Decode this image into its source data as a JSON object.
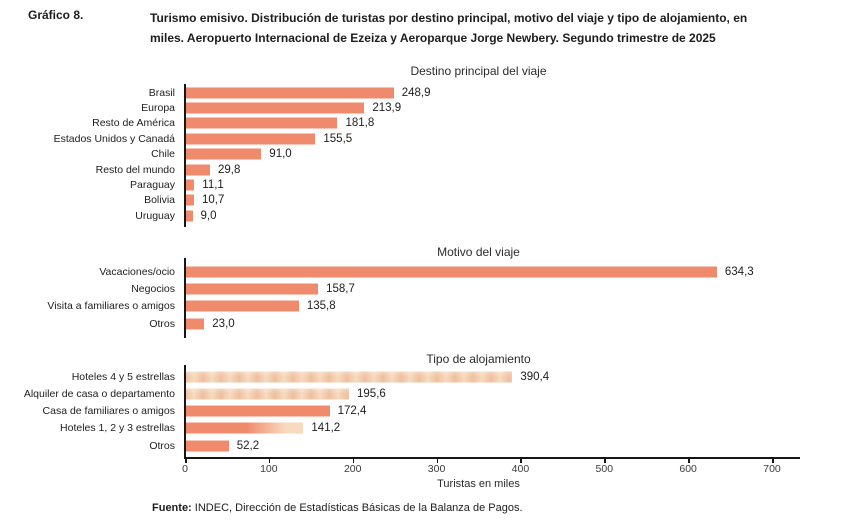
{
  "header": {
    "figure_label": "Gráfico 8.",
    "title_line1": "Turismo emisivo. Distribución de turistas por destino principal, motivo del viaje y tipo de alojamiento, en",
    "title_line2": "miles. Aeropuerto Internacional de Ezeiza y Aeroparque Jorge Newbery. Segundo trimestre de 2025"
  },
  "colors": {
    "bar_salmon": "#F08A6C",
    "bar_light": "#F8DABF",
    "bar_light_stripe": "#EEC09F",
    "axis_black": "#161616"
  },
  "axis": {
    "ticks": [
      "0",
      "100",
      "200",
      "300",
      "400",
      "500",
      "600",
      "700"
    ],
    "max": 700,
    "label": "Turistas en miles"
  },
  "chart_data": [
    {
      "type": "bar",
      "orientation": "horizontal",
      "title": "Destino principal del viaje",
      "categories": [
        "Brasil",
        "Europa",
        "Resto de América",
        "Estados Unidos y Canadá",
        "Chile",
        "Resto del mundo",
        "Paraguay",
        "Bolivia",
        "Uruguay"
      ],
      "values": [
        248.9,
        213.9,
        181.8,
        155.5,
        91.0,
        29.8,
        11.1,
        10.7,
        9.0
      ],
      "value_labels": [
        "248,9",
        "213,9",
        "181,8",
        "155,5",
        "91,0",
        "29,8",
        "11,1",
        "10,7",
        "9,0"
      ],
      "xlim": [
        0,
        700
      ]
    },
    {
      "type": "bar",
      "orientation": "horizontal",
      "title": "Motivo del viaje",
      "categories": [
        "Vacaciones/ocio",
        "Negocios",
        "Visita a familiares o amigos",
        "Otros"
      ],
      "values": [
        634.3,
        158.7,
        135.8,
        23.0
      ],
      "value_labels": [
        "634,3",
        "158,7",
        "135,8",
        "23,0"
      ],
      "xlim": [
        0,
        700
      ]
    },
    {
      "type": "bar",
      "orientation": "horizontal",
      "title": "Tipo de alojamiento",
      "categories": [
        "Hoteles 4 y 5 estrellas",
        "Alquiler de casa o departamento",
        "Casa de familiares o amigos",
        "Hoteles 1, 2 y 3 estrellas",
        "Otros"
      ],
      "values": [
        390.4,
        195.6,
        172.4,
        141.2,
        52.2
      ],
      "value_labels": [
        "390,4",
        "195,6",
        "172,4",
        "141,2",
        "52,2"
      ],
      "xlim": [
        0,
        700
      ]
    }
  ],
  "footer": {
    "source_label": "Fuente:",
    "source_text": "INDEC, Dirección de Estadísticas Básicas de la Balanza de Pagos."
  }
}
